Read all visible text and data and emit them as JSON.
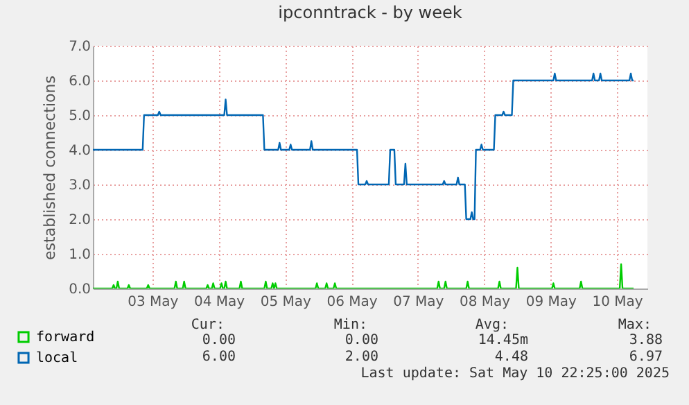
{
  "chart_data": {
    "type": "line",
    "title": "ipconntrack - by week",
    "ylabel": "established connections",
    "xlim": [
      "2025-05-02T14:30",
      "2025-05-10T23:00"
    ],
    "xticks": [
      {
        "value": "2025-05-03T12:00",
        "label": "03 May"
      },
      {
        "value": "2025-05-04T12:00",
        "label": "04 May"
      },
      {
        "value": "2025-05-05T12:00",
        "label": "05 May"
      },
      {
        "value": "2025-05-06T12:00",
        "label": "06 May"
      },
      {
        "value": "2025-05-07T12:00",
        "label": "07 May"
      },
      {
        "value": "2025-05-08T12:00",
        "label": "08 May"
      },
      {
        "value": "2025-05-09T12:00",
        "label": "09 May"
      },
      {
        "value": "2025-05-10T12:00",
        "label": "10 May"
      }
    ],
    "ylim": [
      0,
      7
    ],
    "yticks": [
      {
        "value": 0,
        "label": "0.0"
      },
      {
        "value": 1,
        "label": "1.0"
      },
      {
        "value": 2,
        "label": "2.0"
      },
      {
        "value": 3,
        "label": "3.0"
      },
      {
        "value": 4,
        "label": "4.0"
      },
      {
        "value": 5,
        "label": "5.0"
      },
      {
        "value": 6,
        "label": "6.0"
      },
      {
        "value": 7,
        "label": "7.0"
      }
    ],
    "grid": true,
    "legend": "bottom",
    "series": [
      {
        "name": "forward",
        "color": "#00cc00",
        "x": [
          "2025-05-02T14:30",
          "2025-05-02T21:30",
          "2025-05-02T22:00",
          "2025-05-02T22:30",
          "2025-05-02T23:00",
          "2025-05-02T23:30",
          "2025-05-03T00:00",
          "2025-05-03T03:00",
          "2025-05-03T03:30",
          "2025-05-03T04:00",
          "2025-05-03T10:00",
          "2025-05-03T10:30",
          "2025-05-03T11:00",
          "2025-05-03T20:00",
          "2025-05-03T20:30",
          "2025-05-03T21:00",
          "2025-05-03T23:00",
          "2025-05-03T23:30",
          "2025-05-04T00:00",
          "2025-05-04T07:30",
          "2025-05-04T08:00",
          "2025-05-04T08:30",
          "2025-05-04T09:30",
          "2025-05-04T10:00",
          "2025-05-04T10:30",
          "2025-05-04T12:30",
          "2025-05-04T13:00",
          "2025-05-04T13:30",
          "2025-05-04T14:00",
          "2025-05-04T14:30",
          "2025-05-04T15:00",
          "2025-05-04T19:30",
          "2025-05-04T20:00",
          "2025-05-04T20:30",
          "2025-05-05T04:30",
          "2025-05-05T05:00",
          "2025-05-05T05:30",
          "2025-05-05T07:00",
          "2025-05-05T07:30",
          "2025-05-05T08:00",
          "2025-05-05T08:30",
          "2025-05-05T09:00",
          "2025-05-05T23:00",
          "2025-05-05T23:30",
          "2025-05-06T00:00",
          "2025-05-06T02:30",
          "2025-05-06T03:00",
          "2025-05-06T03:30",
          "2025-05-06T05:30",
          "2025-05-06T06:00",
          "2025-05-06T06:30",
          "2025-05-07T19:00",
          "2025-05-07T19:30",
          "2025-05-07T20:00",
          "2025-05-07T21:30",
          "2025-05-07T22:00",
          "2025-05-07T22:30",
          "2025-05-08T05:30",
          "2025-05-08T06:00",
          "2025-05-08T06:30",
          "2025-05-08T17:00",
          "2025-05-08T17:30",
          "2025-05-08T18:00",
          "2025-05-08T23:30",
          "2025-05-09T00:00",
          "2025-05-09T00:30",
          "2025-05-09T12:30",
          "2025-05-09T13:00",
          "2025-05-09T13:30",
          "2025-05-09T22:30",
          "2025-05-09T23:00",
          "2025-05-09T23:30",
          "2025-05-10T13:00",
          "2025-05-10T13:30",
          "2025-05-10T14:00",
          "2025-05-10T18:00"
        ],
        "values": [
          0,
          0,
          0.1,
          0,
          0,
          0.2,
          0,
          0,
          0.1,
          0,
          0,
          0.1,
          0,
          0,
          0.2,
          0,
          0,
          0.2,
          0,
          0,
          0.1,
          0,
          0,
          0.15,
          0,
          0,
          0.15,
          0,
          0,
          0.2,
          0,
          0,
          0.2,
          0,
          0,
          0.2,
          0,
          0,
          0.15,
          0,
          0.15,
          0,
          0,
          0.15,
          0,
          0,
          0.15,
          0,
          0,
          0.15,
          0,
          0,
          0.2,
          0,
          0,
          0.2,
          0,
          0,
          0.2,
          0,
          0,
          0.2,
          0,
          0,
          0.6,
          0,
          0,
          0.15,
          0,
          0,
          0.2,
          0,
          0,
          0.7,
          0,
          0
        ]
      },
      {
        "name": "local",
        "color": "#0066b3",
        "x": [
          "2025-05-02T14:30",
          "2025-05-03T08:30",
          "2025-05-03T09:00",
          "2025-05-03T14:00",
          "2025-05-03T14:30",
          "2025-05-03T15:00",
          "2025-05-04T14:00",
          "2025-05-04T14:30",
          "2025-05-04T15:00",
          "2025-05-05T04:00",
          "2025-05-05T04:30",
          "2025-05-05T09:30",
          "2025-05-05T10:00",
          "2025-05-05T10:30",
          "2025-05-05T13:30",
          "2025-05-05T14:00",
          "2025-05-05T14:30",
          "2025-05-05T21:00",
          "2025-05-05T21:30",
          "2025-05-05T22:00",
          "2025-05-06T14:00",
          "2025-05-06T14:30",
          "2025-05-06T17:00",
          "2025-05-06T17:30",
          "2025-05-06T18:00",
          "2025-05-07T01:30",
          "2025-05-07T02:00",
          "2025-05-07T03:30",
          "2025-05-07T04:00",
          "2025-05-07T07:00",
          "2025-05-07T07:30",
          "2025-05-07T08:00",
          "2025-05-07T21:00",
          "2025-05-07T21:30",
          "2025-05-07T22:00",
          "2025-05-08T02:00",
          "2025-05-08T02:30",
          "2025-05-08T03:00",
          "2025-05-08T05:00",
          "2025-05-08T05:30",
          "2025-05-08T07:00",
          "2025-05-08T07:30",
          "2025-05-08T08:00",
          "2025-05-08T08:30",
          "2025-05-08T09:00",
          "2025-05-08T10:30",
          "2025-05-08T11:00",
          "2025-05-08T11:30",
          "2025-05-08T15:30",
          "2025-05-08T16:00",
          "2025-05-08T18:30",
          "2025-05-08T19:00",
          "2025-05-08T19:30",
          "2025-05-08T22:00",
          "2025-05-08T22:30",
          "2025-05-09T13:00",
          "2025-05-09T13:30",
          "2025-05-09T14:00",
          "2025-05-10T03:00",
          "2025-05-10T03:30",
          "2025-05-10T04:00",
          "2025-05-10T05:30",
          "2025-05-10T06:00",
          "2025-05-10T06:30",
          "2025-05-10T16:30",
          "2025-05-10T17:00",
          "2025-05-10T17:30",
          "2025-05-10T18:00"
        ],
        "values": [
          4,
          4,
          5,
          5,
          5.1,
          5,
          5,
          5.45,
          5,
          5,
          4,
          4,
          4.2,
          4,
          4,
          4.15,
          4,
          4,
          4.25,
          4,
          4,
          3,
          3,
          3.1,
          3,
          3,
          4,
          4,
          3,
          3,
          3.6,
          3,
          3,
          3.1,
          3,
          3,
          3.2,
          3,
          3,
          2,
          2,
          2.2,
          2,
          2,
          4,
          4,
          4.15,
          4,
          4,
          5,
          5,
          5.1,
          5,
          5,
          6,
          6,
          6.2,
          6,
          6,
          6.2,
          6,
          6,
          6.2,
          6,
          6,
          6.2,
          6,
          6
        ]
      }
    ],
    "annotations": [
      "Cur:",
      "Min:",
      "Avg:",
      "Max:",
      "0.00",
      "0.00",
      "14.45m",
      "3.88",
      "6.00",
      "2.00",
      "4.48",
      "6.97",
      "Last update: Sat May 10 22:25:00 2025"
    ]
  }
}
